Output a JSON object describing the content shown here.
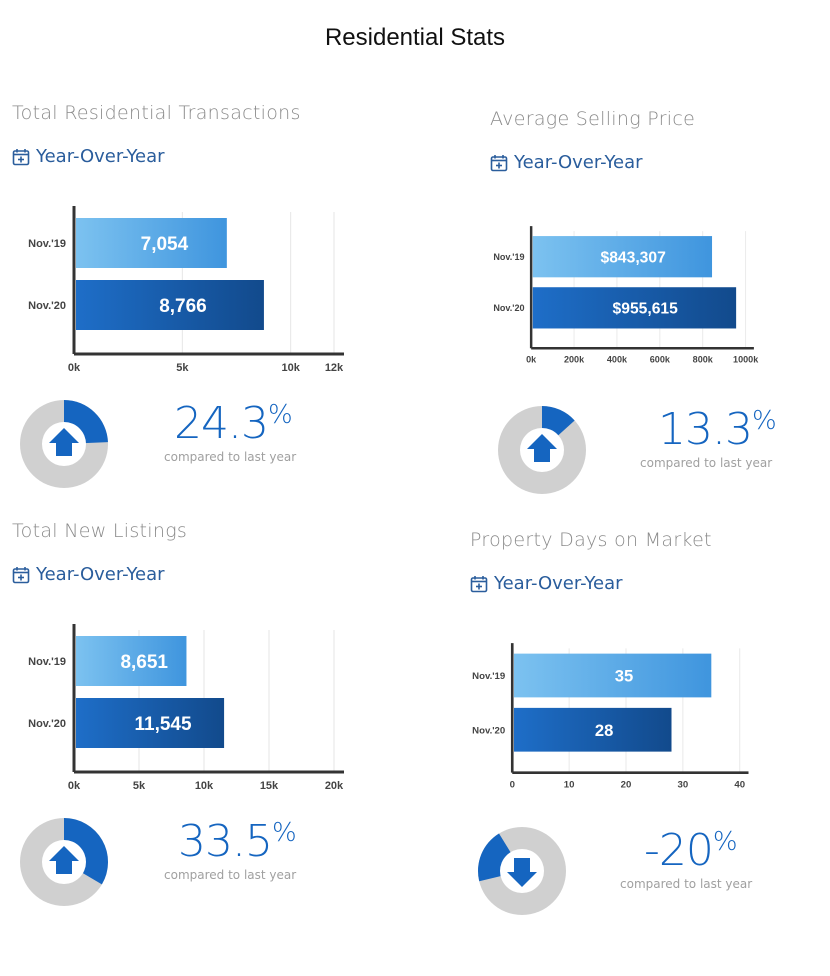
{
  "page_title": "Residential Stats",
  "colors": {
    "light_blue": "#5aaee8",
    "dark_blue": "#1565c0",
    "donut_grey": "#d0d0d0",
    "axis": "#333333",
    "grid": "#e6e6e6"
  },
  "icons": {
    "calendar": "calendar-plus-icon",
    "up": "arrow-up-icon",
    "down": "arrow-down-icon"
  },
  "panels": [
    {
      "title": "Total Residential Transactions",
      "period_label": "Year-Over-Year",
      "change_value": "24.3",
      "change_symbol": "%",
      "compare_text": "compared to last year",
      "direction": "up",
      "donut_fraction": 0.243
    },
    {
      "title": "Average Selling Price",
      "period_label": "Year-Over-Year",
      "change_value": "13.3",
      "change_symbol": "%",
      "compare_text": "compared to last year",
      "direction": "up",
      "donut_fraction": 0.133
    },
    {
      "title": "Total New Listings",
      "period_label": "Year-Over-Year",
      "change_value": "33.5",
      "change_symbol": "%",
      "compare_text": "compared to last year",
      "direction": "up",
      "donut_fraction": 0.335
    },
    {
      "title": "Property Days on Market",
      "period_label": "Year-Over-Year",
      "change_value": "-20",
      "change_symbol": "%",
      "compare_text": "compared to last year",
      "direction": "down",
      "donut_fraction": 0.2
    }
  ],
  "chart_data": [
    {
      "type": "bar",
      "orientation": "horizontal",
      "categories": [
        "Nov.'19",
        "Nov.'20"
      ],
      "values": [
        7054,
        8766
      ],
      "data_labels": [
        "7,054",
        "8,766"
      ],
      "xlim": [
        0,
        12000
      ],
      "ticks": [
        0,
        5000,
        10000,
        12000
      ],
      "tick_labels": [
        "0k",
        "5k",
        "10k",
        "12k"
      ],
      "grid": true
    },
    {
      "type": "bar",
      "orientation": "horizontal",
      "categories": [
        "Nov.'19",
        "Nov.'20"
      ],
      "values": [
        843307,
        955615
      ],
      "data_labels": [
        "$843,307",
        "$955,615"
      ],
      "xlim": [
        0,
        1000000
      ],
      "ticks": [
        0,
        200000,
        400000,
        600000,
        800000,
        1000000
      ],
      "tick_labels": [
        "0k",
        "200k",
        "400k",
        "600k",
        "800k",
        "1000k"
      ],
      "grid": true
    },
    {
      "type": "bar",
      "orientation": "horizontal",
      "categories": [
        "Nov.'19",
        "Nov.'20"
      ],
      "values": [
        8651,
        11545
      ],
      "data_labels": [
        "8,651",
        "11,545"
      ],
      "xlim": [
        0,
        20000
      ],
      "ticks": [
        0,
        5000,
        10000,
        15000,
        20000
      ],
      "tick_labels": [
        "0k",
        "5k",
        "10k",
        "15k",
        "20k"
      ],
      "grid": true
    },
    {
      "type": "bar",
      "orientation": "horizontal",
      "categories": [
        "Nov.'19",
        "Nov.'20"
      ],
      "values": [
        35,
        28
      ],
      "data_labels": [
        "35",
        "28"
      ],
      "xlim": [
        0,
        40
      ],
      "ticks": [
        0,
        10,
        20,
        30,
        40
      ],
      "tick_labels": [
        "0",
        "10",
        "20",
        "30",
        "40"
      ],
      "grid": true
    }
  ]
}
